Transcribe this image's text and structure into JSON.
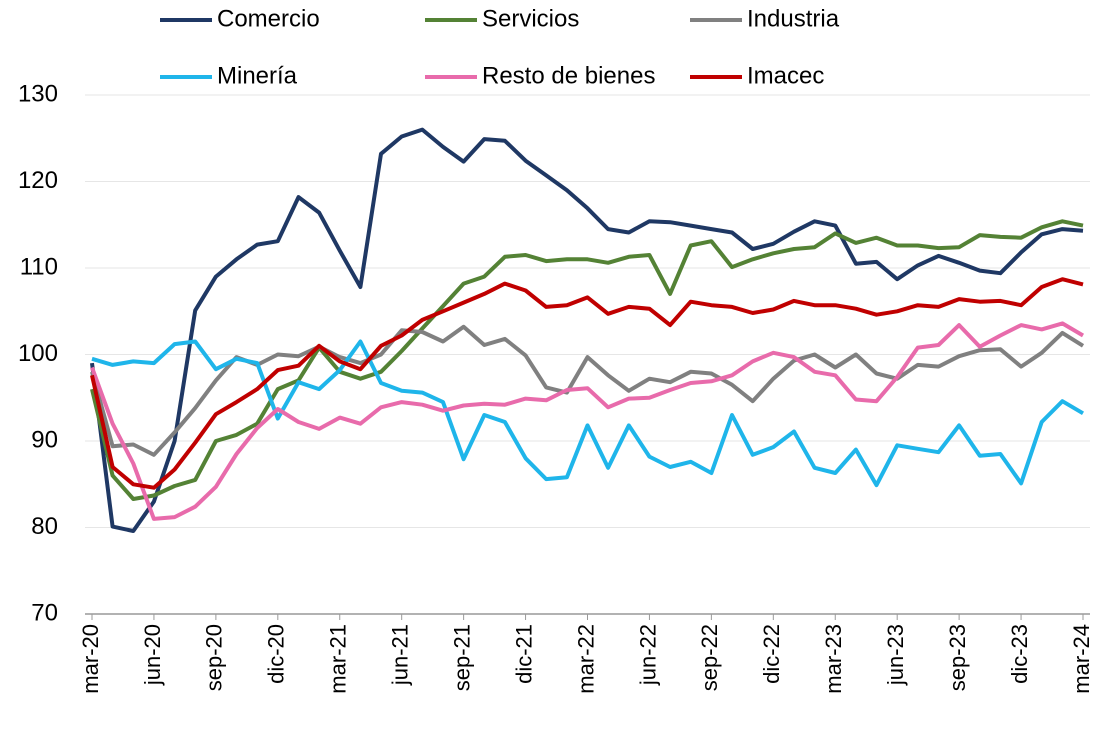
{
  "chart_data": {
    "type": "line",
    "categories": [
      "mar-20",
      null,
      null,
      "jun-20",
      null,
      null,
      "sep-20",
      null,
      null,
      "dic-20",
      null,
      null,
      "mar-21",
      null,
      null,
      "jun-21",
      null,
      null,
      "sep-21",
      null,
      null,
      "dic-21",
      null,
      null,
      "mar-22",
      null,
      null,
      "jun-22",
      null,
      null,
      "sep-22",
      null,
      null,
      "dic-22",
      null,
      null,
      "mar-23",
      null,
      null,
      "jun-23",
      null,
      null,
      "sep-23",
      null,
      null,
      "dic-23",
      null,
      null,
      "mar-24"
    ],
    "series": [
      {
        "name": "Comercio",
        "color": "#1f3864",
        "values": [
          99,
          80.1,
          79.6,
          83,
          90,
          105.1,
          109,
          111,
          112.7,
          113.1,
          118.2,
          116.4,
          112,
          107.8,
          123.2,
          125.2,
          126,
          124,
          122.3,
          124.9,
          124.7,
          122.4,
          120.7,
          119,
          116.9,
          114.5,
          114.1,
          115.4,
          115.3,
          114.9,
          114.5,
          114.1,
          112.2,
          112.8,
          114.2,
          115.4,
          114.9,
          110.5,
          110.7,
          108.7,
          110.3,
          111.4,
          110.6,
          109.7,
          109.4,
          111.8,
          113.9,
          114.5,
          114.3
        ]
      },
      {
        "name": "Servicios",
        "color": "#548235",
        "values": [
          96,
          86,
          83.3,
          83.7,
          84.8,
          85.5,
          90,
          90.7,
          92,
          96,
          97,
          100.8,
          98,
          97.2,
          98,
          100.4,
          103,
          105.6,
          108.2,
          109,
          111.3,
          111.5,
          110.8,
          111,
          111,
          110.6,
          111.3,
          111.5,
          107,
          112.6,
          113.1,
          110.1,
          111,
          111.7,
          112.2,
          112.4,
          114,
          112.9,
          113.5,
          112.6,
          112.6,
          112.3,
          112.4,
          113.8,
          113.6,
          113.5,
          114.7,
          115.4,
          114.9
        ]
      },
      {
        "name": "Industria",
        "color": "#808080",
        "values": [
          98,
          89.4,
          89.6,
          88.4,
          91,
          93.8,
          97,
          99.7,
          98.8,
          100,
          99.8,
          100.9,
          99.7,
          99,
          100,
          102.8,
          102.6,
          101.5,
          103.2,
          101.1,
          101.8,
          99.9,
          96.2,
          95.6,
          99.7,
          97.6,
          95.8,
          97.2,
          96.8,
          98,
          97.8,
          96.5,
          94.6,
          97.2,
          99.3,
          100,
          98.5,
          100,
          97.8,
          97.2,
          98.8,
          98.6,
          99.8,
          100.5,
          100.6,
          98.6,
          100.2,
          102.5,
          101
        ]
      },
      {
        "name": "Minería",
        "color": "#1fb5ea",
        "values": [
          99.5,
          98.8,
          99.2,
          99,
          101.2,
          101.5,
          98.3,
          99.5,
          99,
          92.6,
          96.8,
          96,
          98.2,
          101.5,
          96.7,
          95.8,
          95.6,
          94.5,
          87.9,
          93,
          92.2,
          88,
          85.6,
          85.8,
          91.8,
          86.9,
          91.8,
          88.2,
          87,
          87.6,
          86.3,
          93,
          88.4,
          89.3,
          91.1,
          86.9,
          86.3,
          89,
          84.9,
          89.5,
          89.1,
          88.7,
          91.8,
          88.3,
          88.5,
          85.1,
          92.2,
          94.6,
          93.2
        ]
      },
      {
        "name": "Resto de bienes",
        "color": "#e86bab",
        "values": [
          98.5,
          92,
          87.4,
          81,
          81.2,
          82.4,
          84.7,
          88.5,
          91.5,
          93.7,
          92.2,
          91.4,
          92.7,
          92,
          93.9,
          94.5,
          94.2,
          93.5,
          94.1,
          94.3,
          94.2,
          94.9,
          94.7,
          95.9,
          96.1,
          93.9,
          94.9,
          95,
          95.9,
          96.7,
          96.9,
          97.6,
          99.2,
          100.2,
          99.7,
          98,
          97.6,
          94.8,
          94.6,
          97.4,
          100.8,
          101.1,
          103.4,
          100.9,
          102.2,
          103.4,
          102.9,
          103.6,
          102.2
        ]
      },
      {
        "name": "Imacec",
        "color": "#c00000",
        "values": [
          97.6,
          87,
          85,
          84.6,
          86.7,
          89.8,
          93.1,
          94.5,
          96,
          98.2,
          98.7,
          101,
          99.2,
          98.3,
          101,
          102.2,
          104,
          105,
          106,
          107,
          108.2,
          107.4,
          105.5,
          105.7,
          106.6,
          104.7,
          105.5,
          105.3,
          103.4,
          106.1,
          105.7,
          105.5,
          104.8,
          105.2,
          106.2,
          105.7,
          105.7,
          105.3,
          104.6,
          105,
          105.7,
          105.5,
          106.4,
          106.1,
          106.2,
          105.7,
          107.8,
          108.7,
          108.1
        ]
      }
    ],
    "ylim": [
      70,
      130
    ],
    "yticks": [
      70,
      80,
      90,
      100,
      110,
      120,
      130
    ],
    "grid": true,
    "legend": "top"
  }
}
